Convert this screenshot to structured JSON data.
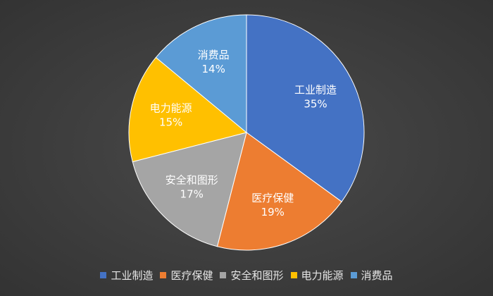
{
  "chart_data": {
    "type": "pie",
    "categories": [
      "工业制造",
      "医疗保健",
      "安全和图形",
      "电力能源",
      "消费品"
    ],
    "values": [
      35,
      19,
      17,
      15,
      14
    ],
    "value_labels": [
      "35%",
      "19%",
      "17%",
      "15%",
      "14%"
    ],
    "colors": [
      "#4472c4",
      "#ed7d31",
      "#a5a5a5",
      "#ffc000",
      "#5b9bd5"
    ],
    "legend": "bottom"
  }
}
